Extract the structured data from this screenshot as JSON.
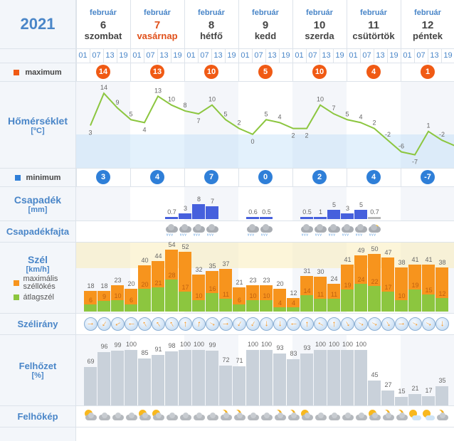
{
  "year": "2021",
  "days": [
    {
      "month": "február",
      "day": "6",
      "weekday": "szombat",
      "sunday": false
    },
    {
      "month": "február",
      "day": "7",
      "weekday": "vasárnap",
      "sunday": true
    },
    {
      "month": "február",
      "day": "8",
      "weekday": "hétfő",
      "sunday": false
    },
    {
      "month": "február",
      "day": "9",
      "weekday": "kedd",
      "sunday": false
    },
    {
      "month": "február",
      "day": "10",
      "weekday": "szerda",
      "sunday": false
    },
    {
      "month": "február",
      "day": "11",
      "weekday": "csütörtök",
      "sunday": false
    },
    {
      "month": "február",
      "day": "12",
      "weekday": "péntek",
      "sunday": false
    }
  ],
  "hours": [
    "01",
    "07",
    "13",
    "19"
  ],
  "labels": {
    "maximum": "maximum",
    "temperature": "Hőmérséklet",
    "temperature_unit": "[ºC]",
    "minimum": "minimum",
    "precip": "Csapadék",
    "precip_unit": "[mm]",
    "precip_type": "Csapadékfajta",
    "wind": "Szél",
    "wind_unit": "[km/h]",
    "wind_gust": "maximális széllökés",
    "wind_avg": "átlagszél",
    "wind_dir": "Szélirány",
    "cloud": "Felhőzet",
    "cloud_unit": "[%]",
    "cloud_pic": "Felhőkép"
  },
  "colors": {
    "max": "#f05a14",
    "min": "#2f7fd8",
    "line": "#8cc63f",
    "precip": "#4660dd",
    "gust": "#f7941d",
    "avg": "#8cc63f",
    "cloud": "#c9d1da"
  },
  "daily_max": [
    "14",
    "13",
    "10",
    "5",
    "10",
    "4",
    "1"
  ],
  "daily_min": [
    "3",
    "4",
    "7",
    "0",
    "2",
    "4",
    "-7"
  ],
  "temperature": [
    3,
    14,
    9,
    5,
    4,
    13,
    10,
    8,
    7,
    10,
    5,
    2,
    0,
    5,
    4,
    2,
    2,
    10,
    7,
    5,
    4,
    2,
    -2,
    -6,
    -7,
    1,
    -2,
    -4
  ],
  "temperature_labels": [
    "3",
    "14",
    "9",
    "5",
    "4",
    "13",
    "10",
    "8",
    "7",
    "10",
    "5",
    "2",
    "0",
    "5",
    "4",
    "2",
    "2",
    "10",
    "7",
    "5",
    "4",
    "2",
    "-2",
    "-6",
    "-7",
    "1",
    "-2",
    ""
  ],
  "precipitation": [
    {
      "col": 6,
      "value": "0.7",
      "mm": 0.7,
      "kind": "rain"
    },
    {
      "col": 7,
      "value": "3",
      "mm": 3,
      "kind": "rain"
    },
    {
      "col": 8,
      "value": "8",
      "mm": 8,
      "kind": "rain"
    },
    {
      "col": 9,
      "value": "7",
      "mm": 7,
      "kind": "rain"
    },
    {
      "col": 12,
      "value": "0.6",
      "mm": 0.6,
      "kind": "rain"
    },
    {
      "col": 13,
      "value": "0.5",
      "mm": 0.5,
      "kind": "rain"
    },
    {
      "col": 16,
      "value": "0.5",
      "mm": 0.5,
      "kind": "rain"
    },
    {
      "col": 17,
      "value": "1",
      "mm": 1,
      "kind": "rain"
    },
    {
      "col": 18,
      "value": "5",
      "mm": 5,
      "kind": "rain"
    },
    {
      "col": 19,
      "value": "3",
      "mm": 3,
      "kind": "rain"
    },
    {
      "col": 20,
      "value": "5",
      "mm": 5,
      "kind": "rain-light"
    },
    {
      "col": 21,
      "value": "0.7",
      "mm": 0.7,
      "kind": "sun-shower"
    }
  ],
  "wind_gust": [
    18,
    18,
    23,
    20,
    40,
    44,
    54,
    52,
    32,
    35,
    37,
    21,
    23,
    23,
    20,
    12,
    31,
    30,
    24,
    41,
    49,
    50,
    47,
    38,
    41,
    41,
    38
  ],
  "wind_avg": [
    6,
    9,
    10,
    6,
    20,
    21,
    28,
    17,
    10,
    16,
    11,
    6,
    10,
    10,
    4,
    4,
    14,
    11,
    11,
    19,
    24,
    22,
    17,
    10,
    19,
    15,
    12
  ],
  "wind_dir_deg": [
    90,
    215,
    240,
    270,
    330,
    325,
    330,
    0,
    10,
    120,
    90,
    210,
    210,
    180,
    180,
    270,
    0,
    300,
    0,
    150,
    120,
    120,
    150,
    90,
    120,
    120,
    180
  ],
  "cloud_cover": [
    69,
    96,
    99,
    100,
    85,
    91,
    98,
    100,
    100,
    99,
    72,
    71,
    100,
    100,
    93,
    83,
    93,
    100,
    100,
    100,
    100,
    45,
    27,
    15,
    21,
    17,
    35
  ],
  "cloud_pic": [
    "sun-cloud",
    "cloud",
    "cloud",
    "cloud",
    "sun-cloud",
    "sun-cloud",
    "cloud",
    "cloud",
    "cloud",
    "cloud",
    "moon-cloud",
    "moon-cloud",
    "cloud",
    "cloud",
    "moon-cloud",
    "moon-cloud",
    "sun-cloud",
    "cloud",
    "cloud",
    "cloud",
    "cloud",
    "sun-cloud",
    "moon-cloud",
    "moon-cloud",
    "sun",
    "sun",
    "moon-cloud"
  ]
}
